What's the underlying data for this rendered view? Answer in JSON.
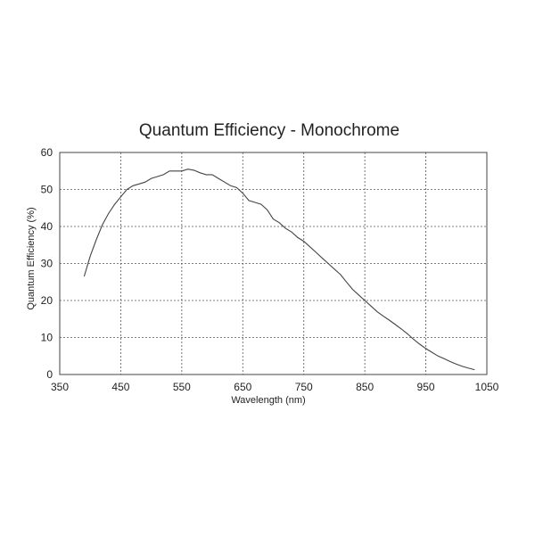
{
  "chart_data": {
    "type": "line",
    "title": "Quantum Efficiency - Monochrome",
    "xlabel": "Wavelength (nm)",
    "ylabel": "Quantum Efficiency (%)",
    "xlim": [
      350,
      1050
    ],
    "ylim": [
      0,
      60
    ],
    "xticks": [
      350,
      450,
      550,
      650,
      750,
      850,
      950,
      1050
    ],
    "yticks": [
      0,
      10,
      20,
      30,
      40,
      50,
      60
    ],
    "grid": true,
    "series": [
      {
        "x": [
          390,
          400,
          410,
          420,
          430,
          440,
          450,
          460,
          470,
          480,
          490,
          500,
          510,
          520,
          530,
          540,
          550,
          560,
          570,
          580,
          590,
          600,
          610,
          620,
          630,
          640,
          650,
          660,
          670,
          680,
          690,
          700,
          710,
          720,
          730,
          740,
          750,
          760,
          770,
          780,
          790,
          800,
          810,
          820,
          830,
          840,
          850,
          860,
          870,
          880,
          890,
          900,
          910,
          920,
          930,
          940,
          950,
          960,
          970,
          980,
          990,
          1000,
          1010,
          1020,
          1030
        ],
        "y": [
          26.5,
          32,
          36.5,
          40.5,
          43.5,
          46,
          48,
          50,
          51,
          51.5,
          52,
          53,
          53.5,
          54,
          55,
          55,
          55,
          55.5,
          55.2,
          54.5,
          54,
          54,
          53,
          52,
          51,
          50.5,
          49,
          47,
          46.5,
          46,
          44.5,
          42,
          41,
          39.5,
          38.5,
          37,
          36,
          34.5,
          33,
          31.5,
          30,
          28.5,
          27,
          25,
          23,
          21.5,
          20,
          18.5,
          17,
          15.8,
          14.7,
          13.5,
          12.3,
          11,
          9.5,
          8.2,
          7,
          6,
          5,
          4.3,
          3.5,
          2.8,
          2.2,
          1.7,
          1.3
        ]
      }
    ]
  }
}
